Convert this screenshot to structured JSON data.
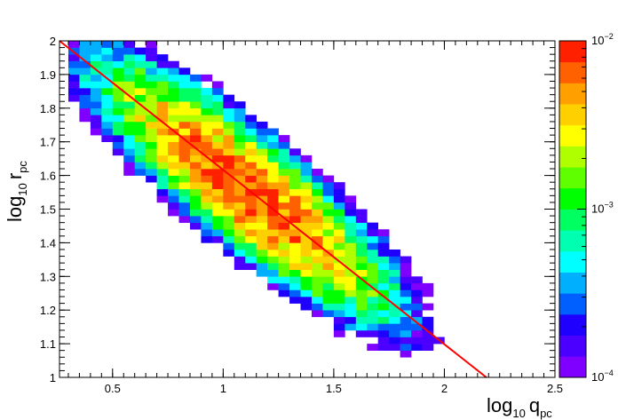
{
  "chart_data": {
    "type": "heatmap",
    "title": "",
    "xlabel": {
      "base": "log",
      "subscript": "10",
      "var": "q",
      "var_subscript": "pc"
    },
    "ylabel": {
      "base": "log",
      "subscript": "10",
      "var": "r",
      "var_subscript": "pc"
    },
    "xlim": [
      0.26,
      2.5
    ],
    "ylim": [
      1.0,
      2.0
    ],
    "x_ticks": [
      {
        "value": 0.5,
        "label": "0.5"
      },
      {
        "value": 1.0,
        "label": "1"
      },
      {
        "value": 1.5,
        "label": "1.5"
      },
      {
        "value": 2.0,
        "label": "2"
      },
      {
        "value": 2.5,
        "label": "2.5"
      }
    ],
    "y_ticks": [
      {
        "value": 1.0,
        "label": "1"
      },
      {
        "value": 1.1,
        "label": "1.1"
      },
      {
        "value": 1.2,
        "label": "1.2"
      },
      {
        "value": 1.3,
        "label": "1.3"
      },
      {
        "value": 1.4,
        "label": "1.4"
      },
      {
        "value": 1.5,
        "label": "1.5"
      },
      {
        "value": 1.6,
        "label": "1.6"
      },
      {
        "value": 1.7,
        "label": "1.7"
      },
      {
        "value": 1.8,
        "label": "1.8"
      },
      {
        "value": 1.9,
        "label": "1.9"
      },
      {
        "value": 2.0,
        "label": "2"
      }
    ],
    "bins": {
      "x_width": 0.05,
      "y_width": 0.02
    },
    "distribution": {
      "shape": "elongated gaussian band along the fit line",
      "center": [
        1.1,
        1.56
      ],
      "along_axis_sigma": 0.33,
      "perp_axis_sigma": 0.074,
      "peak_log10": -2.1,
      "threshold_log10": -4.0
    },
    "colorbar": {
      "scale": "log",
      "range": [
        0.0001,
        0.01
      ],
      "ticks": [
        {
          "value": 0.01,
          "base": "10",
          "exp": "−2"
        },
        {
          "value": 0.001,
          "base": "10",
          "exp": "−3"
        },
        {
          "value": 0.0001,
          "base": "10",
          "exp": "−4"
        }
      ],
      "palette": [
        "#7f00ff",
        "#4b00ff",
        "#1f00ff",
        "#0060ff",
        "#00b0ff",
        "#00ffff",
        "#00ffb0",
        "#00ff60",
        "#00ff00",
        "#60ff00",
        "#b0ff00",
        "#ffff00",
        "#ffd000",
        "#ffa000",
        "#ff6000",
        "#ff2000"
      ]
    },
    "fit_line": {
      "color": "#ff0000",
      "points": [
        [
          0.26,
          2.0
        ],
        [
          2.19,
          1.0
        ]
      ]
    },
    "grid": false
  }
}
